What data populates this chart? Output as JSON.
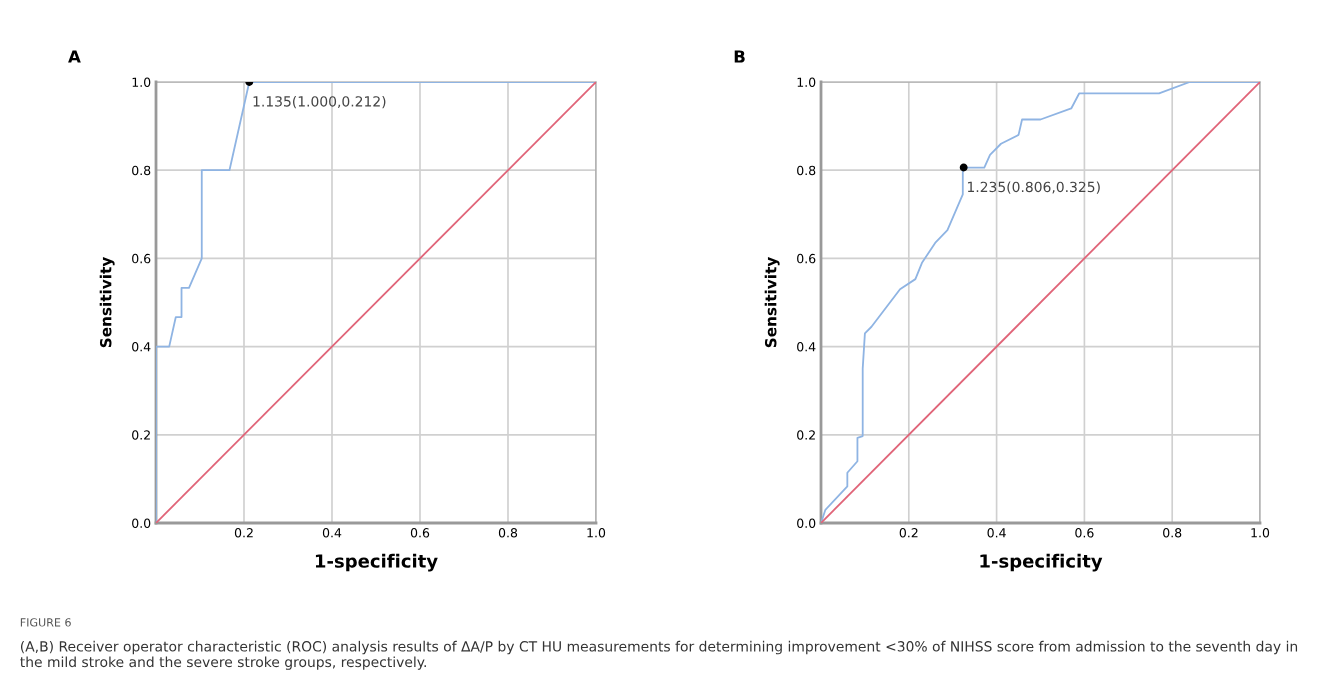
{
  "chart_data": [
    {
      "type": "line",
      "title": "A",
      "xlabel": "1-specificity",
      "ylabel": "Sensitivity",
      "xlim": [
        0,
        1
      ],
      "ylim": [
        0,
        1
      ],
      "xticks": [
        {
          "value": 0.2,
          "label": "0.2"
        },
        {
          "value": 0.4,
          "label": "0.4"
        },
        {
          "value": 0.6,
          "label": "0.6"
        },
        {
          "value": 0.8,
          "label": "0.8"
        },
        {
          "value": 1.0,
          "label": "1.0"
        }
      ],
      "yticks": [
        {
          "value": 0,
          "label": "0.0"
        },
        {
          "value": 0.2,
          "label": "0.2"
        },
        {
          "value": 0.4,
          "label": "0.4"
        },
        {
          "value": 0.6,
          "label": "0.6"
        },
        {
          "value": 0.8,
          "label": "0.8"
        },
        {
          "value": 1.0,
          "label": "1.0"
        }
      ],
      "grid": true,
      "series": [
        {
          "color": "#8fb4e3",
          "x": [
            0,
            0,
            0.03,
            0.045,
            0.058,
            0.058,
            0.075,
            0.104,
            0.104,
            0.167,
            0.212,
            1
          ],
          "values": [
            0,
            0.4,
            0.4,
            0.467,
            0.467,
            0.533,
            0.533,
            0.6,
            0.8,
            0.8,
            1.0,
            1.0
          ]
        },
        {
          "color": "#e06478",
          "x": [
            0,
            1
          ],
          "values": [
            0,
            1
          ]
        },
        {
          "type": "scatter",
          "color": "#000000",
          "x": [
            0.212
          ],
          "values": [
            1.0
          ]
        }
      ],
      "annotations": [
        {
          "text": "1.135(1.000,0.212)",
          "x": 0.212,
          "y": 1.0
        }
      ]
    },
    {
      "type": "line",
      "title": "B",
      "xlabel": "1-specificity",
      "ylabel": "Sensitivity",
      "xlim": [
        0,
        1
      ],
      "ylim": [
        0,
        1
      ],
      "xticks": [
        {
          "value": 0.2,
          "label": "0.2"
        },
        {
          "value": 0.4,
          "label": "0.4"
        },
        {
          "value": 0.6,
          "label": "0.6"
        },
        {
          "value": 0.8,
          "label": "0.8"
        },
        {
          "value": 1.0,
          "label": "1.0"
        }
      ],
      "yticks": [
        {
          "value": 0,
          "label": "0.0"
        },
        {
          "value": 0.2,
          "label": "0.2"
        },
        {
          "value": 0.4,
          "label": "0.4"
        },
        {
          "value": 0.6,
          "label": "0.6"
        },
        {
          "value": 0.8,
          "label": "0.8"
        },
        {
          "value": 1.0,
          "label": "1.0"
        }
      ],
      "grid": true,
      "series": [
        {
          "color": "#8fb4e3",
          "x": [
            0,
            0.01,
            0.06,
            0.06,
            0.083,
            0.083,
            0.095,
            0.095,
            0.1,
            0.115,
            0.18,
            0.215,
            0.23,
            0.26,
            0.288,
            0.323,
            0.323,
            0.372,
            0.385,
            0.41,
            0.45,
            0.458,
            0.5,
            0.57,
            0.588,
            0.77,
            0.84,
            1
          ],
          "values": [
            0,
            0.03,
            0.083,
            0.114,
            0.14,
            0.193,
            0.197,
            0.35,
            0.43,
            0.445,
            0.53,
            0.553,
            0.59,
            0.635,
            0.664,
            0.745,
            0.806,
            0.806,
            0.835,
            0.86,
            0.88,
            0.915,
            0.915,
            0.94,
            0.974,
            0.974,
            1.0,
            1.0
          ]
        },
        {
          "color": "#e06478",
          "x": [
            0,
            1
          ],
          "values": [
            0,
            1
          ]
        },
        {
          "type": "scatter",
          "color": "#000000",
          "x": [
            0.325
          ],
          "values": [
            0.806
          ]
        }
      ],
      "annotations": [
        {
          "text": "1.235(0.806,0.325)",
          "x": 0.325,
          "y": 0.806
        },
        "FIGURE 6",
        "(A,B) Receiver operator characteristic (ROC) analysis results of ΔA/P by CT HU measurements for determining improvement <30% of NIHSS score from admission to the seventh day in the mild stroke and the severe stroke groups, respectively."
      ]
    }
  ]
}
